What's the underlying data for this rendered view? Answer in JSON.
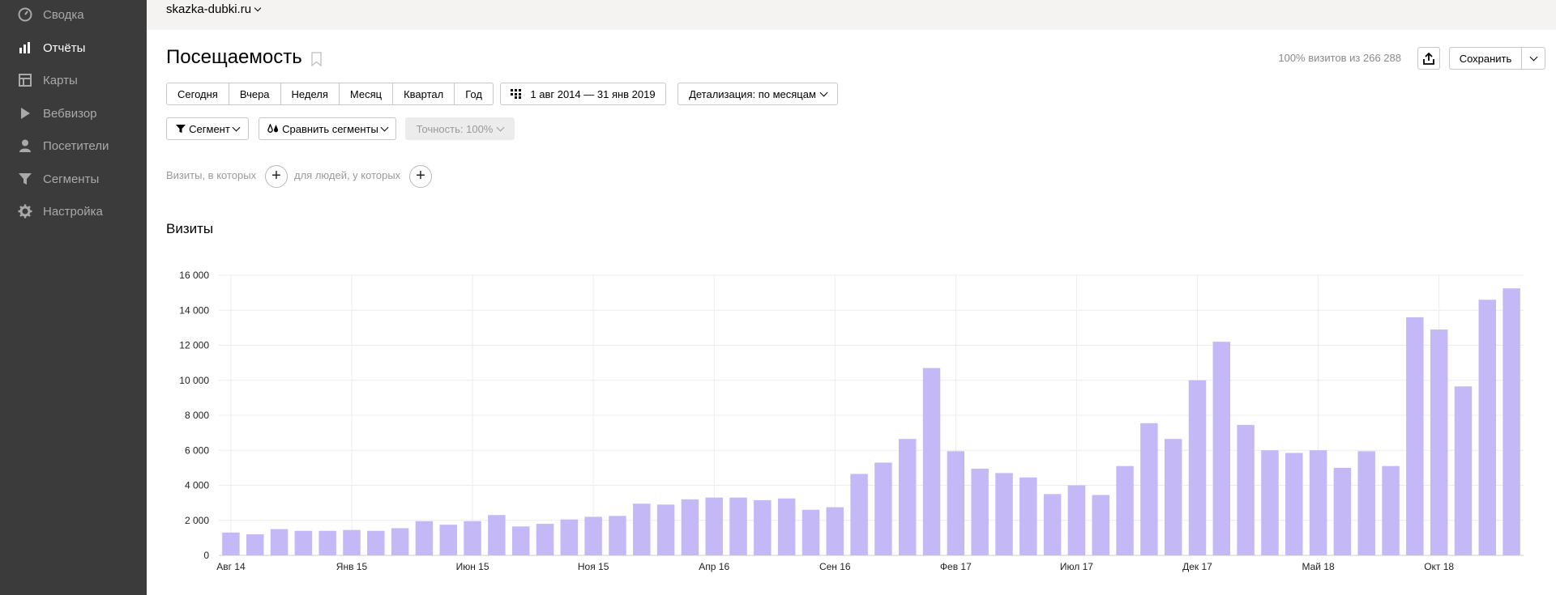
{
  "sidebar": {
    "items": [
      {
        "label": "Сводка",
        "icon": "gauge-icon",
        "active": false
      },
      {
        "label": "Отчёты",
        "icon": "bar-chart-icon",
        "active": true
      },
      {
        "label": "Карты",
        "icon": "map-icon",
        "active": false
      },
      {
        "label": "Вебвизор",
        "icon": "play-icon",
        "active": false
      },
      {
        "label": "Посетители",
        "icon": "person-icon",
        "active": false
      },
      {
        "label": "Сегменты",
        "icon": "filter-icon",
        "active": false
      },
      {
        "label": "Настройка",
        "icon": "gear-icon",
        "active": false
      }
    ]
  },
  "topbar": {
    "site": "skazka-dubki.ru"
  },
  "header": {
    "title": "Посещаемость",
    "sample": "100% визитов из 266 288",
    "save_label": "Сохранить"
  },
  "period": {
    "presets": [
      "Сегодня",
      "Вчера",
      "Неделя",
      "Месяц",
      "Квартал",
      "Год"
    ],
    "range": "1 авг 2014 — 31 янв 2019",
    "detail": "Детализация: по месяцам"
  },
  "filters": {
    "segment": "Сегмент",
    "compare": "Сравнить сегменты",
    "accuracy": "Точность: 100%"
  },
  "conditions": {
    "visits_label": "Визиты, в которых",
    "people_label": "для людей, у которых"
  },
  "chart_title": "Визиты",
  "colors": {
    "bar": "#c5b8f6",
    "sidebar": "#3b3b3b",
    "topbar": "#f4f3f1"
  },
  "chart_data": {
    "type": "bar",
    "title": "Визиты",
    "ylim": [
      0,
      16000
    ],
    "yticks": [
      "0",
      "2 000",
      "4 000",
      "6 000",
      "8 000",
      "10 000",
      "12 000",
      "14 000",
      "16 000"
    ],
    "xtick_labels": [
      {
        "index": 0,
        "label": "Авг 14"
      },
      {
        "index": 5,
        "label": "Янв 15"
      },
      {
        "index": 10,
        "label": "Июн 15"
      },
      {
        "index": 15,
        "label": "Ноя 15"
      },
      {
        "index": 20,
        "label": "Апр 16"
      },
      {
        "index": 25,
        "label": "Сен 16"
      },
      {
        "index": 30,
        "label": "Фев 17"
      },
      {
        "index": 35,
        "label": "Июл 17"
      },
      {
        "index": 40,
        "label": "Дек 17"
      },
      {
        "index": 45,
        "label": "Май 18"
      },
      {
        "index": 50,
        "label": "Окт 18"
      }
    ],
    "values": [
      1300,
      1200,
      1500,
      1400,
      1400,
      1450,
      1400,
      1550,
      1950,
      1750,
      1950,
      2300,
      1650,
      1800,
      2050,
      2200,
      2250,
      2950,
      2900,
      3200,
      3300,
      3300,
      3150,
      3250,
      2600,
      2750,
      4650,
      5300,
      6650,
      10700,
      5950,
      4950,
      4700,
      4450,
      3500,
      4000,
      3450,
      5100,
      7550,
      6650,
      10000,
      12200,
      7450,
      6000,
      5850,
      6000,
      5000,
      5950,
      5100,
      13600,
      12900,
      9650,
      14600,
      15250
    ],
    "grid": true
  }
}
